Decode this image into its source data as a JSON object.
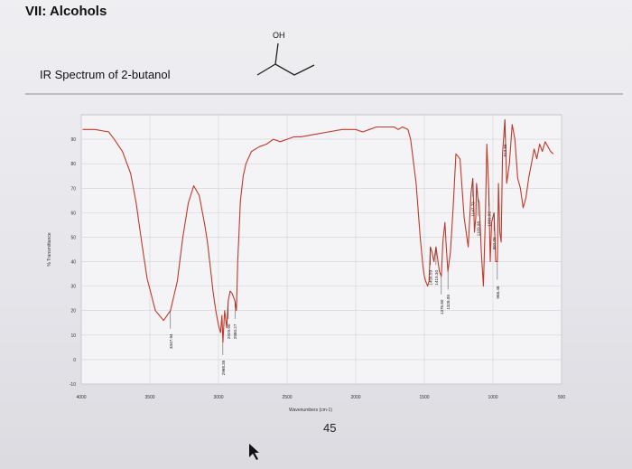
{
  "heading": "VII: Alcohols",
  "subtitle": "IR Spectrum of 2-butanol",
  "molecule": {
    "label": "OH"
  },
  "page_number": "45",
  "chart_data": {
    "type": "line",
    "title": "",
    "xlabel": "Wavenumbers (cm-1)",
    "ylabel": "% Transmittance",
    "xlim": [
      4000,
      500
    ],
    "ylim": [
      -10,
      100
    ],
    "x_reversed": true,
    "x_ticks": [
      "4000",
      "3500",
      "3000",
      "2500",
      "2000",
      "1500",
      "1000",
      "500"
    ],
    "x_tick_values": [
      4000,
      3500,
      3000,
      2500,
      2000,
      1500,
      1000,
      500
    ],
    "y_ticks": [
      "90",
      "80",
      "70",
      "60",
      "50",
      "40",
      "30",
      "20",
      "10",
      "0",
      "-10"
    ],
    "y_tick_values": [
      90,
      80,
      70,
      60,
      50,
      40,
      30,
      20,
      10,
      0,
      -10
    ],
    "grid": true,
    "line_color": "#c0392b",
    "series": [
      {
        "x": [
          3990,
          3900,
          3800,
          3760,
          3700,
          3640,
          3600,
          3560,
          3520,
          3460,
          3400,
          3350,
          3300,
          3260,
          3220,
          3180,
          3140,
          3100,
          3080,
          3060,
          3040,
          3020,
          3000,
          2985,
          2975,
          2968,
          2955,
          2940,
          2929,
          2915,
          2900,
          2880,
          2870,
          2860,
          2840,
          2820,
          2800,
          2760,
          2700,
          2650,
          2600,
          2550,
          2500,
          2450,
          2400,
          2300,
          2200,
          2100,
          2000,
          1950,
          1900,
          1850,
          1800,
          1760,
          1720,
          1690,
          1660,
          1620,
          1600,
          1560,
          1530,
          1510,
          1500,
          1490,
          1476,
          1466,
          1460,
          1456,
          1445,
          1430,
          1415,
          1405,
          1390,
          1376,
          1365,
          1350,
          1340,
          1328,
          1310,
          1290,
          1270,
          1240,
          1210,
          1180,
          1160,
          1147,
          1135,
          1125,
          1120,
          1110,
          1100,
          1085,
          1070,
          1055,
          1045,
          1031,
          1020,
          1010,
          992,
          980,
          968,
          960,
          950,
          940,
          930,
          913,
          900,
          880,
          860,
          840,
          820,
          800,
          780,
          760,
          740,
          720,
          700,
          680,
          660,
          640,
          620,
          600,
          580,
          560
        ],
        "y": [
          94,
          94,
          93,
          90,
          85,
          76,
          64,
          48,
          33,
          20,
          16,
          20,
          32,
          50,
          64,
          71,
          67,
          55,
          48,
          38,
          28,
          20,
          14,
          11,
          18,
          7,
          20,
          13,
          24,
          28,
          27,
          24,
          20,
          40,
          65,
          75,
          80,
          85,
          87,
          88,
          90,
          89,
          90,
          91,
          91,
          92,
          93,
          94,
          94,
          93,
          94,
          95,
          95,
          95,
          95,
          94,
          95,
          94,
          90,
          72,
          50,
          38,
          34,
          32,
          30,
          32,
          40,
          46,
          44,
          40,
          46,
          42,
          36,
          34,
          48,
          56,
          46,
          36,
          44,
          62,
          84,
          82,
          58,
          46,
          68,
          74,
          52,
          58,
          72,
          66,
          64,
          44,
          30,
          58,
          88,
          70,
          40,
          56,
          60,
          40,
          40,
          72,
          52,
          48,
          84,
          98,
          72,
          80,
          96,
          90,
          74,
          70,
          62,
          66,
          74,
          80,
          86,
          82,
          88,
          85,
          89,
          87,
          85,
          84
        ]
      }
    ],
    "annotations": [
      {
        "text": "3347.94",
        "x": 3350
      },
      {
        "text": "2968.35",
        "x": 2968
      },
      {
        "text": "2929.90",
        "x": 2929
      },
      {
        "text": "2880.27",
        "x": 2880
      },
      {
        "text": "1456.59",
        "x": 1456
      },
      {
        "text": "1415.30",
        "x": 1415
      },
      {
        "text": "1376.60",
        "x": 1376
      },
      {
        "text": "1328.08",
        "x": 1328
      },
      {
        "text": "1147.73",
        "x": 1147
      },
      {
        "text": "1109.98",
        "x": 1110
      },
      {
        "text": "1031.92",
        "x": 1031
      },
      {
        "text": "992.05",
        "x": 992
      },
      {
        "text": "968.48",
        "x": 968
      },
      {
        "text": "913.55",
        "x": 913
      }
    ]
  }
}
